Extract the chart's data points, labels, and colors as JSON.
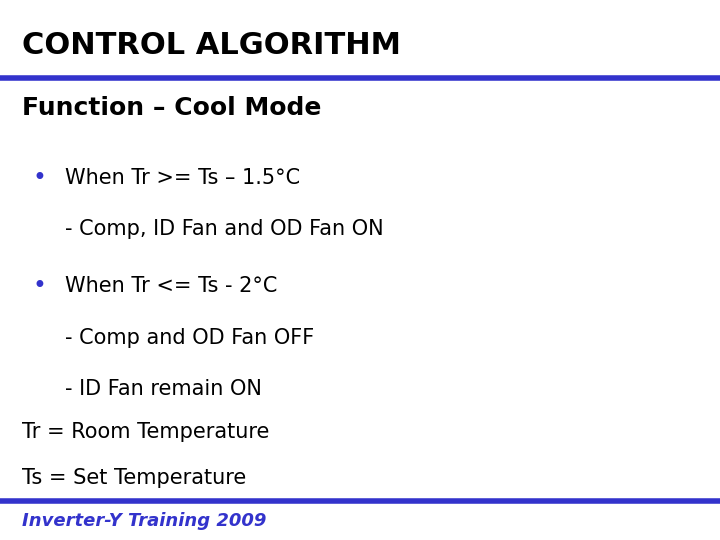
{
  "title": "CONTROL ALGORITHM",
  "title_color": "#000000",
  "title_fontsize": 22,
  "title_bold": true,
  "subtitle": "Function – Cool Mode",
  "subtitle_fontsize": 18,
  "subtitle_bold": true,
  "subtitle_color": "#000000",
  "bullet_color": "#3333cc",
  "bullet1_line1": "When Tr >= Ts – 1.5°C",
  "bullet1_line2": "- Comp, ID Fan and OD Fan ON",
  "bullet2_line1": "When Tr <= Ts - 2°C",
  "bullet2_line2": "- Comp and OD Fan OFF",
  "bullet2_line3": "- ID Fan remain ON",
  "note_line1": "Tr = Room Temperature",
  "note_line2": "Ts = Set Temperature",
  "footer": "Inverter-Y Training 2009",
  "footer_color": "#3333cc",
  "footer_fontsize": 13,
  "footer_bold": true,
  "text_fontsize": 15,
  "text_color": "#000000",
  "top_bar_color": "#3333cc",
  "bottom_bar_color": "#3333cc",
  "bg_color": "#ffffff"
}
